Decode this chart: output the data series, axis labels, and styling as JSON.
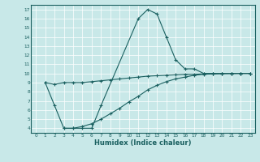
{
  "xlabel": "Humidex (Indice chaleur)",
  "bg_color": "#c8e8e8",
  "grid_color": "#ffffff",
  "line_color": "#1a6060",
  "xlim": [
    -0.5,
    23.5
  ],
  "ylim": [
    3.5,
    17.5
  ],
  "yticks": [
    4,
    5,
    6,
    7,
    8,
    9,
    10,
    11,
    12,
    13,
    14,
    15,
    16,
    17
  ],
  "xticks": [
    0,
    1,
    2,
    3,
    4,
    5,
    6,
    7,
    8,
    9,
    10,
    11,
    12,
    13,
    14,
    15,
    16,
    17,
    18,
    19,
    20,
    21,
    22,
    23
  ],
  "line1_x": [
    1,
    2,
    3,
    4,
    5,
    6,
    7,
    11,
    12,
    13,
    14,
    15,
    16,
    17,
    18,
    19,
    20,
    21,
    22,
    23
  ],
  "line1_y": [
    9.0,
    6.5,
    4.0,
    4.0,
    4.0,
    4.0,
    6.5,
    16.0,
    17.0,
    16.5,
    14.0,
    11.5,
    10.5,
    10.5,
    10.0,
    10.0,
    10.0,
    10.0,
    10.0,
    10.0
  ],
  "line2_x": [
    1,
    2,
    3,
    4,
    5,
    6,
    7,
    8,
    9,
    10,
    11,
    12,
    13,
    14,
    15,
    16,
    17,
    18,
    19,
    20,
    21,
    22,
    23
  ],
  "line2_y": [
    9.0,
    8.8,
    9.0,
    9.0,
    9.0,
    9.1,
    9.2,
    9.3,
    9.4,
    9.5,
    9.6,
    9.7,
    9.75,
    9.8,
    9.85,
    9.9,
    9.9,
    9.95,
    9.95,
    10.0,
    10.0,
    10.0,
    10.0
  ],
  "line3_x": [
    3,
    4,
    5,
    6,
    7,
    8,
    9,
    10,
    11,
    12,
    13,
    14,
    15,
    16,
    17,
    18,
    19,
    20,
    21,
    22,
    23
  ],
  "line3_y": [
    4.0,
    4.0,
    4.2,
    4.5,
    5.0,
    5.6,
    6.2,
    6.9,
    7.5,
    8.2,
    8.7,
    9.1,
    9.4,
    9.6,
    9.8,
    9.9,
    9.95,
    9.97,
    9.98,
    10.0,
    10.0
  ]
}
